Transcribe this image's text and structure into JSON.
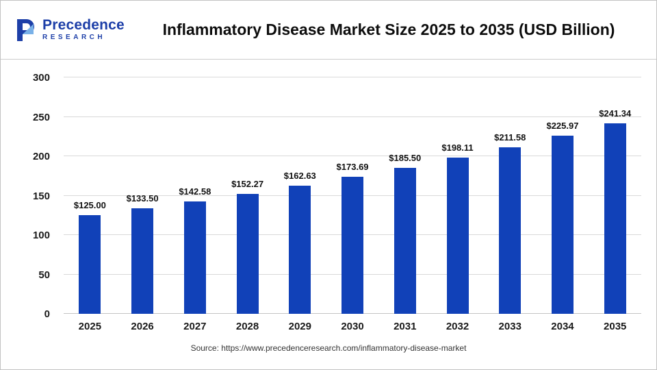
{
  "header": {
    "title": "Inflammatory Disease Market Size 2025 to 2035 (USD Billion)",
    "logo": {
      "name": "Precedence",
      "subname": "RESEARCH",
      "icon": "precedence-p-logo",
      "color": "#1d3fa8"
    }
  },
  "chart_data": {
    "type": "bar",
    "title": "Inflammatory Disease Market Size 2025 to 2035 (USD Billion)",
    "categories": [
      "2025",
      "2026",
      "2027",
      "2028",
      "2029",
      "2030",
      "2031",
      "2032",
      "2033",
      "2034",
      "2035"
    ],
    "values": [
      125.0,
      133.5,
      142.58,
      152.27,
      162.63,
      173.69,
      185.5,
      198.11,
      211.58,
      225.97,
      241.34
    ],
    "value_labels": [
      "$125.00",
      "$133.50",
      "$142.58",
      "$152.27",
      "$162.63",
      "$173.69",
      "$185.50",
      "$198.11",
      "$211.58",
      "$225.97",
      "$241.34"
    ],
    "xlabel": "",
    "ylabel": "",
    "ylim": [
      0,
      300
    ],
    "yticks": [
      0,
      50,
      100,
      150,
      200,
      250,
      300
    ],
    "grid": true,
    "legend": "none",
    "bar_color": "#1141b8"
  },
  "footer": {
    "source": "Source: https://www.precedenceresearch.com/inflammatory-disease-market"
  }
}
